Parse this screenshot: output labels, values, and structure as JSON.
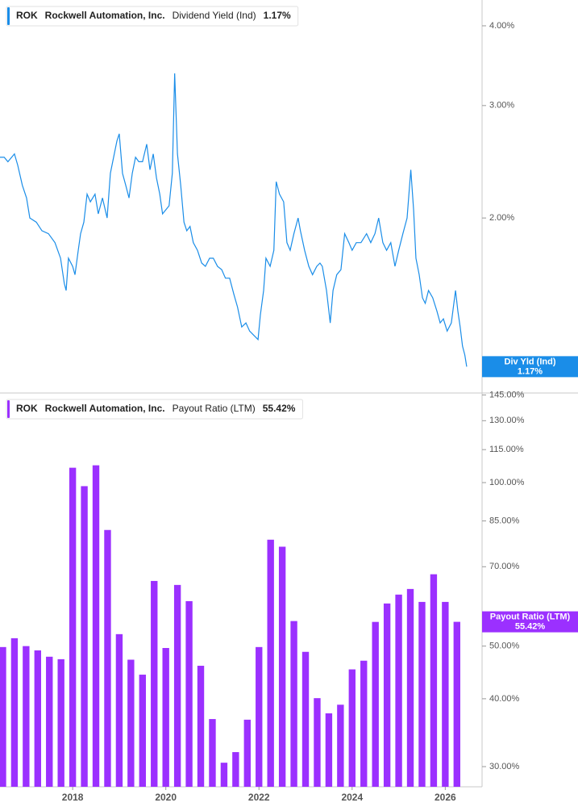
{
  "chart_data": [
    {
      "type": "line",
      "ticker": "ROK",
      "company": "Rockwell Automation, Inc.",
      "title": "Dividend Yield (Ind)",
      "legend_value": "1.17%",
      "tag_name": "Div Yld (Ind)",
      "log_scale": true,
      "color": "#1a8de8",
      "x": [
        2016.44,
        2016.53,
        2016.61,
        2016.75,
        2016.82,
        2016.92,
        2017.01,
        2017.08,
        2017.22,
        2017.34,
        2017.48,
        2017.62,
        2017.74,
        2017.82,
        2017.86,
        2017.91,
        2018.0,
        2018.05,
        2018.12,
        2018.17,
        2018.24,
        2018.31,
        2018.38,
        2018.48,
        2018.55,
        2018.64,
        2018.74,
        2018.81,
        2018.86,
        2018.95,
        2019.0,
        2019.07,
        2019.14,
        2019.21,
        2019.28,
        2019.35,
        2019.42,
        2019.5,
        2019.59,
        2019.66,
        2019.73,
        2019.8,
        2019.87,
        2019.93,
        2020.0,
        2020.07,
        2020.14,
        2020.19,
        2020.25,
        2020.32,
        2020.39,
        2020.45,
        2020.52,
        2020.59,
        2020.68,
        2020.77,
        2020.85,
        2020.94,
        2021.02,
        2021.11,
        2021.2,
        2021.28,
        2021.37,
        2021.46,
        2021.54,
        2021.63,
        2021.72,
        2021.8,
        2021.89,
        2021.98,
        2022.03,
        2022.1,
        2022.15,
        2022.24,
        2022.32,
        2022.37,
        2022.44,
        2022.53,
        2022.6,
        2022.67,
        2022.75,
        2022.84,
        2022.89,
        2022.98,
        2023.07,
        2023.15,
        2023.24,
        2023.31,
        2023.36,
        2023.45,
        2023.53,
        2023.59,
        2023.67,
        2023.76,
        2023.84,
        2023.93,
        2024.0,
        2024.09,
        2024.19,
        2024.31,
        2024.4,
        2024.49,
        2024.57,
        2024.66,
        2024.74,
        2024.83,
        2024.92,
        2025.0,
        2025.09,
        2025.18,
        2025.26,
        2025.32,
        2025.37,
        2025.44,
        2025.51,
        2025.57,
        2025.64,
        2025.73,
        2025.82,
        2025.89,
        2025.96,
        2026.04,
        2026.13,
        2026.22,
        2026.27,
        2026.32,
        2026.37,
        2026.42,
        2026.46
      ],
      "values": [
        2.49,
        2.49,
        2.45,
        2.52,
        2.42,
        2.25,
        2.15,
        2.0,
        1.97,
        1.91,
        1.89,
        1.83,
        1.73,
        1.58,
        1.54,
        1.73,
        1.68,
        1.63,
        1.78,
        1.89,
        1.97,
        2.18,
        2.12,
        2.18,
        2.03,
        2.15,
        2.0,
        2.35,
        2.45,
        2.64,
        2.71,
        2.35,
        2.25,
        2.15,
        2.35,
        2.49,
        2.45,
        2.45,
        2.61,
        2.38,
        2.52,
        2.31,
        2.18,
        2.03,
        2.06,
        2.09,
        2.35,
        3.37,
        2.52,
        2.25,
        1.97,
        1.91,
        1.94,
        1.83,
        1.78,
        1.7,
        1.68,
        1.73,
        1.73,
        1.68,
        1.66,
        1.61,
        1.61,
        1.52,
        1.45,
        1.35,
        1.37,
        1.33,
        1.31,
        1.29,
        1.41,
        1.54,
        1.73,
        1.68,
        1.78,
        2.28,
        2.18,
        2.12,
        1.83,
        1.78,
        1.89,
        2.0,
        1.91,
        1.78,
        1.68,
        1.63,
        1.68,
        1.7,
        1.68,
        1.54,
        1.37,
        1.54,
        1.63,
        1.66,
        1.89,
        1.83,
        1.78,
        1.83,
        1.83,
        1.89,
        1.83,
        1.89,
        2.0,
        1.83,
        1.78,
        1.83,
        1.68,
        1.78,
        1.89,
        2.0,
        2.38,
        2.06,
        1.73,
        1.63,
        1.5,
        1.47,
        1.54,
        1.5,
        1.43,
        1.37,
        1.39,
        1.33,
        1.37,
        1.54,
        1.43,
        1.35,
        1.26,
        1.22,
        1.17
      ],
      "xlim": [
        2016.44,
        2026.79
      ],
      "ylim": [
        1.064,
        4.39
      ],
      "yticks": [
        {
          "value": 4,
          "label": "4.00%"
        },
        {
          "value": 3,
          "label": "3.00%"
        },
        {
          "value": 2,
          "label": "2.00%"
        }
      ]
    },
    {
      "type": "bar",
      "ticker": "ROK",
      "company": "Rockwell Automation, Inc.",
      "title": "Payout Ratio (LTM)",
      "legend_value": "55.42%",
      "tag_name": "Payout Ratio (LTM)",
      "log_scale": true,
      "color": "#9b30ff",
      "x": [
        2016.5,
        2016.75,
        2017.0,
        2017.25,
        2017.5,
        2017.75,
        2018.0,
        2018.25,
        2018.5,
        2018.75,
        2019.0,
        2019.25,
        2019.5,
        2019.75,
        2020.0,
        2020.25,
        2020.5,
        2020.75,
        2021.0,
        2021.25,
        2021.5,
        2021.75,
        2022.0,
        2022.25,
        2022.5,
        2022.75,
        2023.0,
        2023.25,
        2023.5,
        2023.75,
        2024.0,
        2024.25,
        2024.5,
        2024.75,
        2025.0,
        2025.25,
        2025.5,
        2025.75,
        2026.0,
        2026.25
      ],
      "values": [
        49.8,
        51.7,
        50.0,
        49.1,
        47.8,
        47.3,
        106.5,
        98.5,
        107.6,
        81.8,
        52.6,
        47.2,
        44.3,
        65.9,
        49.6,
        64.8,
        60.5,
        46.0,
        36.7,
        30.5,
        31.9,
        36.6,
        49.8,
        78.5,
        76.2,
        55.6,
        48.8,
        40.1,
        37.6,
        39.0,
        45.3,
        47.0,
        55.4,
        59.9,
        62.2,
        63.7,
        60.3,
        67.8,
        60.3,
        55.42
      ],
      "xlim": [
        2016.44,
        2026.79
      ],
      "ylim": [
        27.54,
        146.2
      ],
      "yticks": [
        {
          "value": 145,
          "label": "145.00%"
        },
        {
          "value": 130,
          "label": "130.00%"
        },
        {
          "value": 115,
          "label": "115.00%"
        },
        {
          "value": 100,
          "label": "100.00%"
        },
        {
          "value": 85,
          "label": "85.00%"
        },
        {
          "value": 70,
          "label": "70.00%"
        },
        {
          "value": 50,
          "label": "50.00%"
        },
        {
          "value": 40,
          "label": "40.00%"
        },
        {
          "value": 30,
          "label": "30.00%"
        }
      ],
      "xticks": [
        2018,
        2020,
        2022,
        2024,
        2026
      ]
    }
  ]
}
